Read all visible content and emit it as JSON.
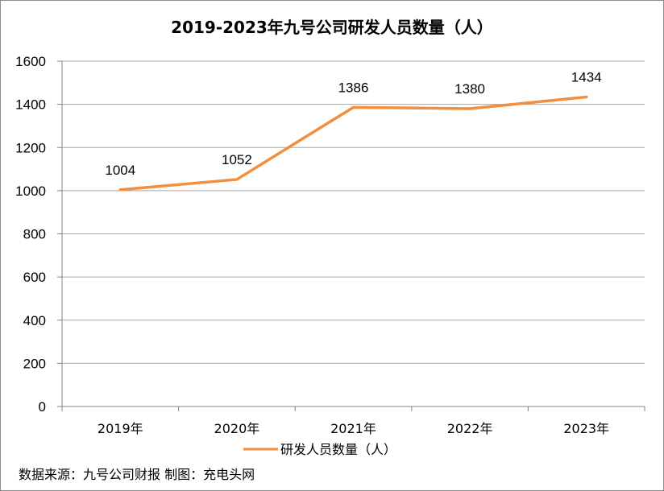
{
  "chart_data": {
    "type": "line",
    "title": "2019-2023年九号公司研发人员数量（人）",
    "categories": [
      "2019年",
      "2020年",
      "2021年",
      "2022年",
      "2023年"
    ],
    "series": [
      {
        "name": "研发人员数量（人）",
        "values": [
          1004,
          1052,
          1386,
          1380,
          1434
        ],
        "color": "#F28E3C"
      }
    ],
    "ylim": [
      0,
      1600
    ],
    "yticks": [
      "0",
      "200",
      "400",
      "600",
      "800",
      "1000",
      "1200",
      "1400",
      "1600"
    ],
    "data_labels": [
      "1004",
      "1052",
      "1386",
      "1380",
      "1434"
    ],
    "grid": true,
    "legend_position": "bottom"
  },
  "source_note": "数据来源：九号公司财报 制图：充电头网",
  "colors": {
    "gridline": "#A6A6A6",
    "axis": "#868686",
    "series_line": "#F28E3C"
  }
}
